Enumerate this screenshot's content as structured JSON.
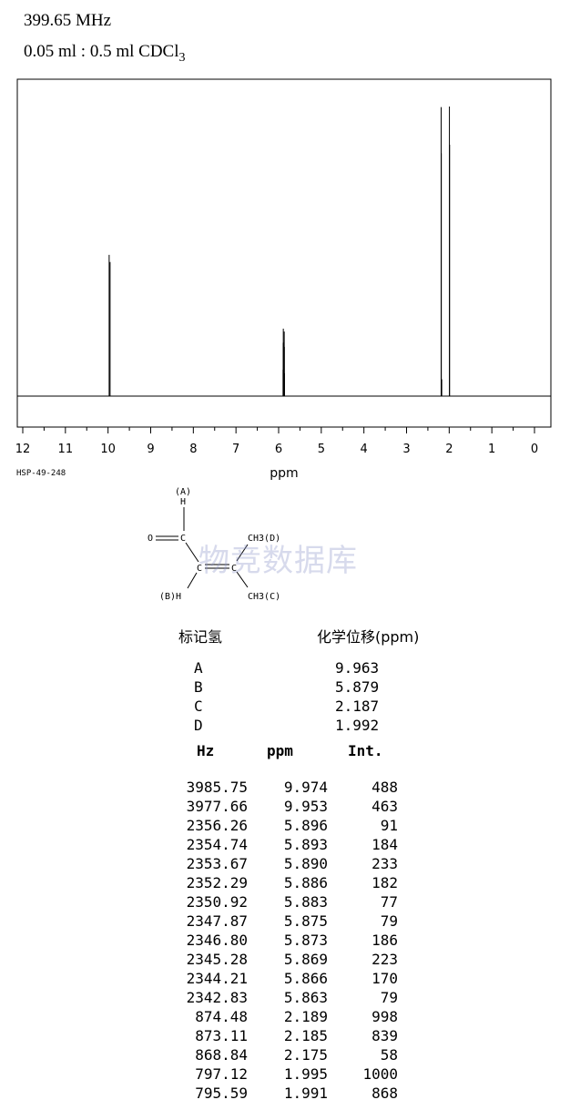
{
  "header": {
    "frequency": "399.65 MHz",
    "solvent_prefix": "0.05 ml : 0.5 ml CDCl",
    "solvent_sub": "3"
  },
  "code": "HSP-49-248",
  "structure": {
    "label_a": "(A)",
    "h_top": "H",
    "o": "O",
    "c1": "C",
    "c2": "C",
    "c3": "C",
    "ch3_d": "CH3(D)",
    "ch3_c": "CH3(C)",
    "bh": "(B)H"
  },
  "watermark": "物竞数据库",
  "assignments": {
    "header_label": "标记氢",
    "header_shift": "化学位移(ppm)",
    "rows": [
      {
        "label": "A",
        "shift": "9.963"
      },
      {
        "label": "B",
        "shift": "5.879"
      },
      {
        "label": "C",
        "shift": "2.187"
      },
      {
        "label": "D",
        "shift": "1.992"
      }
    ]
  },
  "peak_table": {
    "headers": [
      "Hz",
      "ppm",
      "Int."
    ],
    "rows": [
      [
        "3985.75",
        "9.974",
        "488"
      ],
      [
        "3977.66",
        "9.953",
        "463"
      ],
      [
        "2356.26",
        "5.896",
        "91"
      ],
      [
        "2354.74",
        "5.893",
        "184"
      ],
      [
        "2353.67",
        "5.890",
        "233"
      ],
      [
        "2352.29",
        "5.886",
        "182"
      ],
      [
        "2350.92",
        "5.883",
        "77"
      ],
      [
        "2347.87",
        "5.875",
        "79"
      ],
      [
        "2346.80",
        "5.873",
        "186"
      ],
      [
        "2345.28",
        "5.869",
        "223"
      ],
      [
        "2344.21",
        "5.866",
        "170"
      ],
      [
        "2342.83",
        "5.863",
        "79"
      ],
      [
        "874.48",
        "2.189",
        "998"
      ],
      [
        "873.11",
        "2.185",
        "839"
      ],
      [
        "868.84",
        "2.175",
        "58"
      ],
      [
        "797.12",
        "1.995",
        "1000"
      ],
      [
        "795.59",
        "1.991",
        "868"
      ]
    ]
  },
  "chart_data": {
    "type": "line",
    "xlabel": "ppm",
    "xlim": [
      12,
      0
    ],
    "x_ticks": [
      "12",
      "11",
      "10",
      "9",
      "8",
      "7",
      "6",
      "5",
      "4",
      "3",
      "2",
      "1",
      "0"
    ],
    "peaks": [
      {
        "ppm": 9.974,
        "intensity": 488
      },
      {
        "ppm": 9.953,
        "intensity": 463
      },
      {
        "ppm": 5.896,
        "intensity": 91
      },
      {
        "ppm": 5.893,
        "intensity": 184
      },
      {
        "ppm": 5.89,
        "intensity": 233
      },
      {
        "ppm": 5.886,
        "intensity": 182
      },
      {
        "ppm": 5.883,
        "intensity": 77
      },
      {
        "ppm": 5.875,
        "intensity": 79
      },
      {
        "ppm": 5.873,
        "intensity": 186
      },
      {
        "ppm": 5.869,
        "intensity": 223
      },
      {
        "ppm": 5.866,
        "intensity": 170
      },
      {
        "ppm": 5.863,
        "intensity": 79
      },
      {
        "ppm": 2.189,
        "intensity": 998
      },
      {
        "ppm": 2.185,
        "intensity": 839
      },
      {
        "ppm": 2.175,
        "intensity": 58
      },
      {
        "ppm": 1.995,
        "intensity": 1000
      },
      {
        "ppm": 1.991,
        "intensity": 868
      }
    ],
    "line_color": "#000000",
    "grid": false
  }
}
